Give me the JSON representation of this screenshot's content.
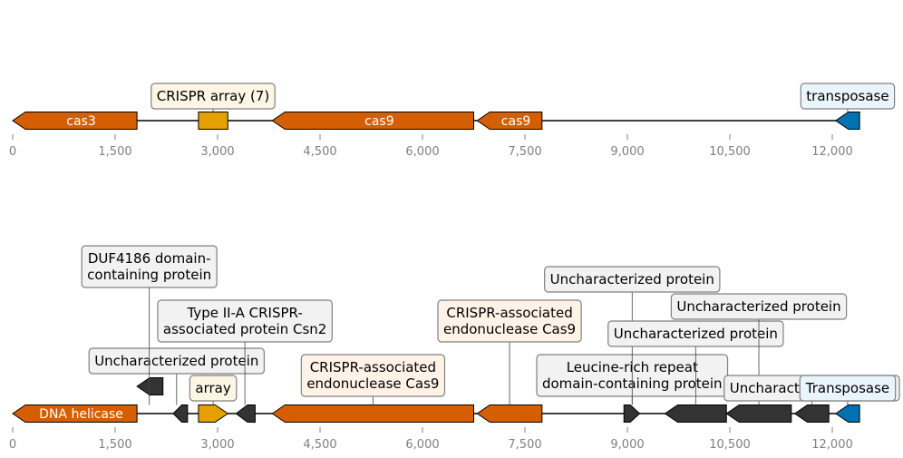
{
  "colors": {
    "cas": "#d55e00",
    "crispr": "#e69f00",
    "transposase": "#0072b2",
    "other": "#333333",
    "axis_text": "#808080",
    "box_cas": "#fff3e8",
    "box_crispr": "#fdf6e4",
    "box_transposase": "#eaf4fb",
    "box_other": "#f2f2f2"
  },
  "tracks": [
    {
      "name": "track-top",
      "ticks": [
        "0",
        "1,500",
        "3,000",
        "4,500",
        "6,000",
        "7,500",
        "9,000",
        "10,500",
        "12,000"
      ],
      "genes": [
        {
          "start": 0,
          "end": 1820,
          "strand": -1,
          "kind": "cas",
          "label": "cas3"
        },
        {
          "start": 2720,
          "end": 3150,
          "strand": 0,
          "kind": "crispr",
          "label": ""
        },
        {
          "start": 3800,
          "end": 6750,
          "strand": -1,
          "kind": "cas",
          "label": "cas9"
        },
        {
          "start": 6800,
          "end": 7750,
          "strand": -1,
          "kind": "cas",
          "label": "cas9"
        },
        {
          "start": 12050,
          "end": 12400,
          "strand": -1,
          "kind": "transposase",
          "label": ""
        }
      ],
      "annotations": [
        {
          "lines": [
            "CRISPR array (7)"
          ],
          "kind": "crispr",
          "at": 2935,
          "level": 0
        }
      ],
      "edge_annotation": {
        "lines": [
          "transposase"
        ],
        "kind": "transposase",
        "at": 12225
      }
    },
    {
      "name": "track-bottom",
      "ticks": [
        "0",
        "1,500",
        "3,000",
        "4,500",
        "6,000",
        "7,500",
        "9,000",
        "10,500",
        "12,000"
      ],
      "genes": [
        {
          "start": 0,
          "end": 1820,
          "strand": -1,
          "kind": "cas",
          "label": "DNA helicase"
        },
        {
          "start": 1820,
          "end": 2200,
          "strand": -1,
          "kind": "other",
          "label": "",
          "raised": true
        },
        {
          "start": 2350,
          "end": 2560,
          "strand": -1,
          "kind": "other",
          "label": ""
        },
        {
          "start": 2720,
          "end": 3150,
          "strand": 1,
          "kind": "crispr",
          "label": ""
        },
        {
          "start": 3270,
          "end": 3550,
          "strand": -1,
          "kind": "other",
          "label": ""
        },
        {
          "start": 3800,
          "end": 6750,
          "strand": -1,
          "kind": "cas",
          "label": ""
        },
        {
          "start": 6800,
          "end": 7750,
          "strand": -1,
          "kind": "cas",
          "label": ""
        },
        {
          "start": 8950,
          "end": 9180,
          "strand": 1,
          "kind": "other",
          "label": ""
        },
        {
          "start": 9550,
          "end": 10450,
          "strand": -1,
          "kind": "other",
          "label": ""
        },
        {
          "start": 10450,
          "end": 11400,
          "strand": -1,
          "kind": "other",
          "label": ""
        },
        {
          "start": 11450,
          "end": 11950,
          "strand": -1,
          "kind": "other",
          "label": ""
        },
        {
          "start": 12050,
          "end": 12400,
          "strand": -1,
          "kind": "transposase",
          "label": ""
        }
      ],
      "annotations": [
        {
          "lines": [
            "Uncharacterized protein"
          ],
          "kind": "other",
          "at": 2400,
          "level": 0
        },
        {
          "lines": [
            "array"
          ],
          "kind": "crispr",
          "at": 2935,
          "level": 4
        },
        {
          "lines": [
            "Type II-A CRISPR-",
            "associated protein Csn2"
          ],
          "kind": "other",
          "at": 3400,
          "level": 1
        },
        {
          "lines": [
            "DUF4186 domain-",
            "containing protein"
          ],
          "kind": "other",
          "at": 2000,
          "level": 2
        },
        {
          "lines": [
            "CRISPR-associated",
            "endonuclease Cas9"
          ],
          "kind": "cas",
          "at": 5275,
          "level": 3
        },
        {
          "lines": [
            "CRISPR-associated",
            "endonuclease Cas9"
          ],
          "kind": "cas",
          "at": 7275,
          "level": 5
        },
        {
          "lines": [
            "Leucine-rich repeat",
            "domain-containing protein"
          ],
          "kind": "other",
          "at": 9070,
          "level": 3
        },
        {
          "lines": [
            "Uncharacterized protein"
          ],
          "kind": "other",
          "at": 9070,
          "level": 6
        },
        {
          "lines": [
            "Uncharacterized protein"
          ],
          "kind": "other",
          "at": 10000,
          "level": 7
        },
        {
          "lines": [
            "Uncharacterized protein"
          ],
          "kind": "other",
          "at": 10925,
          "level": 8
        },
        {
          "lines": [
            "Uncharacterized protein"
          ],
          "kind": "other",
          "at": 11700,
          "level": 9
        }
      ],
      "edge_annotation": {
        "lines": [
          "Transposase"
        ],
        "kind": "transposase",
        "at": 12225
      }
    }
  ]
}
